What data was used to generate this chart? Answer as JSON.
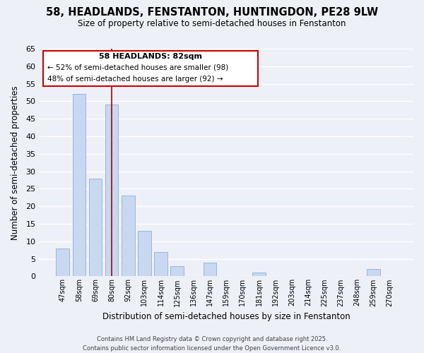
{
  "title": "58, HEADLANDS, FENSTANTON, HUNTINGDON, PE28 9LW",
  "subtitle": "Size of property relative to semi-detached houses in Fenstanton",
  "xlabel": "Distribution of semi-detached houses by size in Fenstanton",
  "ylabel": "Number of semi-detached properties",
  "bar_labels": [
    "47sqm",
    "58sqm",
    "69sqm",
    "80sqm",
    "92sqm",
    "103sqm",
    "114sqm",
    "125sqm",
    "136sqm",
    "147sqm",
    "159sqm",
    "170sqm",
    "181sqm",
    "192sqm",
    "203sqm",
    "214sqm",
    "225sqm",
    "237sqm",
    "248sqm",
    "259sqm",
    "270sqm"
  ],
  "bar_values": [
    8,
    52,
    28,
    49,
    23,
    13,
    7,
    3,
    0,
    4,
    0,
    0,
    1,
    0,
    0,
    0,
    0,
    0,
    0,
    2,
    0
  ],
  "property_line_index": 3,
  "bar_color": "#c8d8f0",
  "bar_edge_color": "#8ab0d8",
  "property_line_color": "#aa0000",
  "ylim": [
    0,
    65
  ],
  "yticks": [
    0,
    5,
    10,
    15,
    20,
    25,
    30,
    35,
    40,
    45,
    50,
    55,
    60,
    65
  ],
  "annotation_title": "58 HEADLANDS: 82sqm",
  "annotation_line1": "← 52% of semi-detached houses are smaller (98)",
  "annotation_line2": "48% of semi-detached houses are larger (92) →",
  "footer_line1": "Contains HM Land Registry data © Crown copyright and database right 2025.",
  "footer_line2": "Contains public sector information licensed under the Open Government Licence v3.0.",
  "background_color": "#eef0f8",
  "grid_color": "#ffffff"
}
